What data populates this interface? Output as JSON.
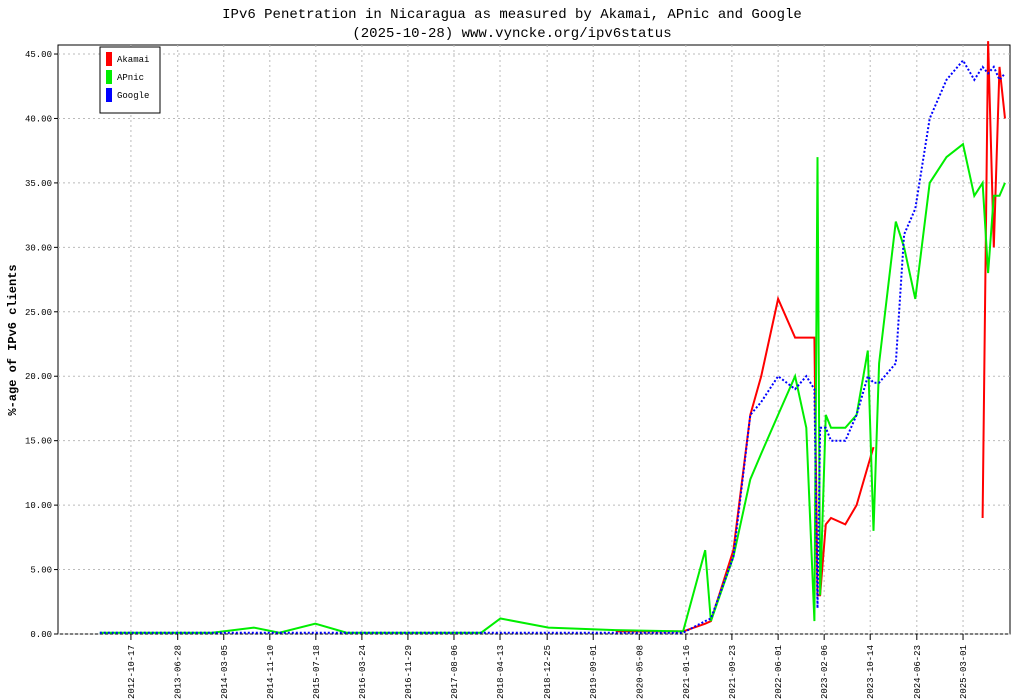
{
  "chart_data": {
    "type": "line",
    "title": "IPv6 Penetration in Nicaragua as measured by Akamai, APnic and Google",
    "subtitle": "(2025-10-28) www.vyncke.org/ipv6status",
    "y_label": "%-age of IPv6 clients",
    "x": [
      "2012-05-01",
      "2013-01-01",
      "2014-01-01",
      "2014-08-15",
      "2015-01-01",
      "2015-07-15",
      "2016-01-01",
      "2017-01-01",
      "2018-01-01",
      "2018-04-15",
      "2019-01-01",
      "2020-01-01",
      "2021-01-01",
      "2021-05-01",
      "2021-06-01",
      "2021-10-01",
      "2022-01-01",
      "2022-03-01",
      "2022-06-01",
      "2022-09-01",
      "2022-11-01",
      "2022-12-15",
      "2023-01-01",
      "2023-01-15",
      "2023-02-15",
      "2023-03-15",
      "2023-06-01",
      "2023-08-01",
      "2023-10-01",
      "2023-11-01",
      "2023-12-01",
      "2024-03-01",
      "2024-04-15",
      "2024-06-15",
      "2024-09-01",
      "2024-12-01",
      "2025-03-01",
      "2025-05-01",
      "2025-06-15",
      "2025-07-15",
      "2025-08-15",
      "2025-09-15",
      "2025-10-15"
    ],
    "series": [
      {
        "name": "Akamai",
        "color": "#ff0000",
        "dashed": false,
        "values": [
          null,
          null,
          null,
          null,
          null,
          null,
          null,
          null,
          null,
          null,
          null,
          0.2,
          0.2,
          0.8,
          1,
          6.5,
          17,
          20,
          26,
          23,
          23,
          23,
          3,
          3,
          8.5,
          9,
          8.5,
          10,
          13,
          14.5,
          null,
          null,
          null,
          null,
          null,
          null,
          null,
          null,
          9,
          46,
          30,
          44,
          40
        ]
      },
      {
        "name": "APnic",
        "color": "#00ee00",
        "dashed": false,
        "values": [
          0.1,
          0.1,
          0.1,
          0.5,
          0.1,
          0.8,
          0.1,
          0.1,
          0.1,
          1.2,
          0.5,
          0.3,
          0.2,
          6.5,
          1,
          6,
          12,
          14,
          17,
          20,
          16,
          1,
          37,
          3,
          17,
          16,
          16,
          17,
          22,
          8,
          21,
          32,
          30,
          26,
          35,
          37,
          38,
          34,
          35,
          28,
          34,
          34,
          35
        ]
      },
      {
        "name": "Google",
        "color": "#0000ff",
        "dashed": true,
        "values": [
          0.1,
          0.1,
          0.1,
          0.1,
          0.1,
          0.1,
          0.1,
          0.1,
          0.1,
          0.1,
          0.1,
          0.1,
          0.1,
          1,
          1.2,
          6,
          17,
          18,
          20,
          19,
          20,
          19,
          2,
          16,
          16,
          15,
          15,
          17,
          20,
          19.5,
          19.5,
          21,
          31,
          33,
          40,
          43,
          44.5,
          43,
          44,
          43.5,
          44,
          43,
          43.5
        ]
      }
    ],
    "xlim": [
      "2011-09-17",
      "2025-11-11"
    ],
    "xticks": [
      "2012-10-17",
      "2013-06-28",
      "2014-03-05",
      "2014-11-10",
      "2015-07-18",
      "2016-03-24",
      "2016-11-29",
      "2017-08-06",
      "2018-04-13",
      "2018-12-25",
      "2019-09-01",
      "2020-05-08",
      "2021-01-16",
      "2021-09-23",
      "2022-06-01",
      "2023-02-06",
      "2023-10-14",
      "2024-06-23",
      "2025-03-01"
    ],
    "ylim": [
      0,
      45.7
    ],
    "yticks": [
      {
        "value": 0,
        "label": "0.00"
      },
      {
        "value": 5,
        "label": "5.00"
      },
      {
        "value": 10,
        "label": "10.00"
      },
      {
        "value": 15,
        "label": "15.00"
      },
      {
        "value": 20,
        "label": "20.00"
      },
      {
        "value": 25,
        "label": "25.00"
      },
      {
        "value": 30,
        "label": "30.00"
      },
      {
        "value": 35,
        "label": "35.00"
      },
      {
        "value": 40,
        "label": "40.00"
      },
      {
        "value": 45,
        "label": "45.00"
      }
    ],
    "grid": true,
    "legend": "top-left"
  }
}
